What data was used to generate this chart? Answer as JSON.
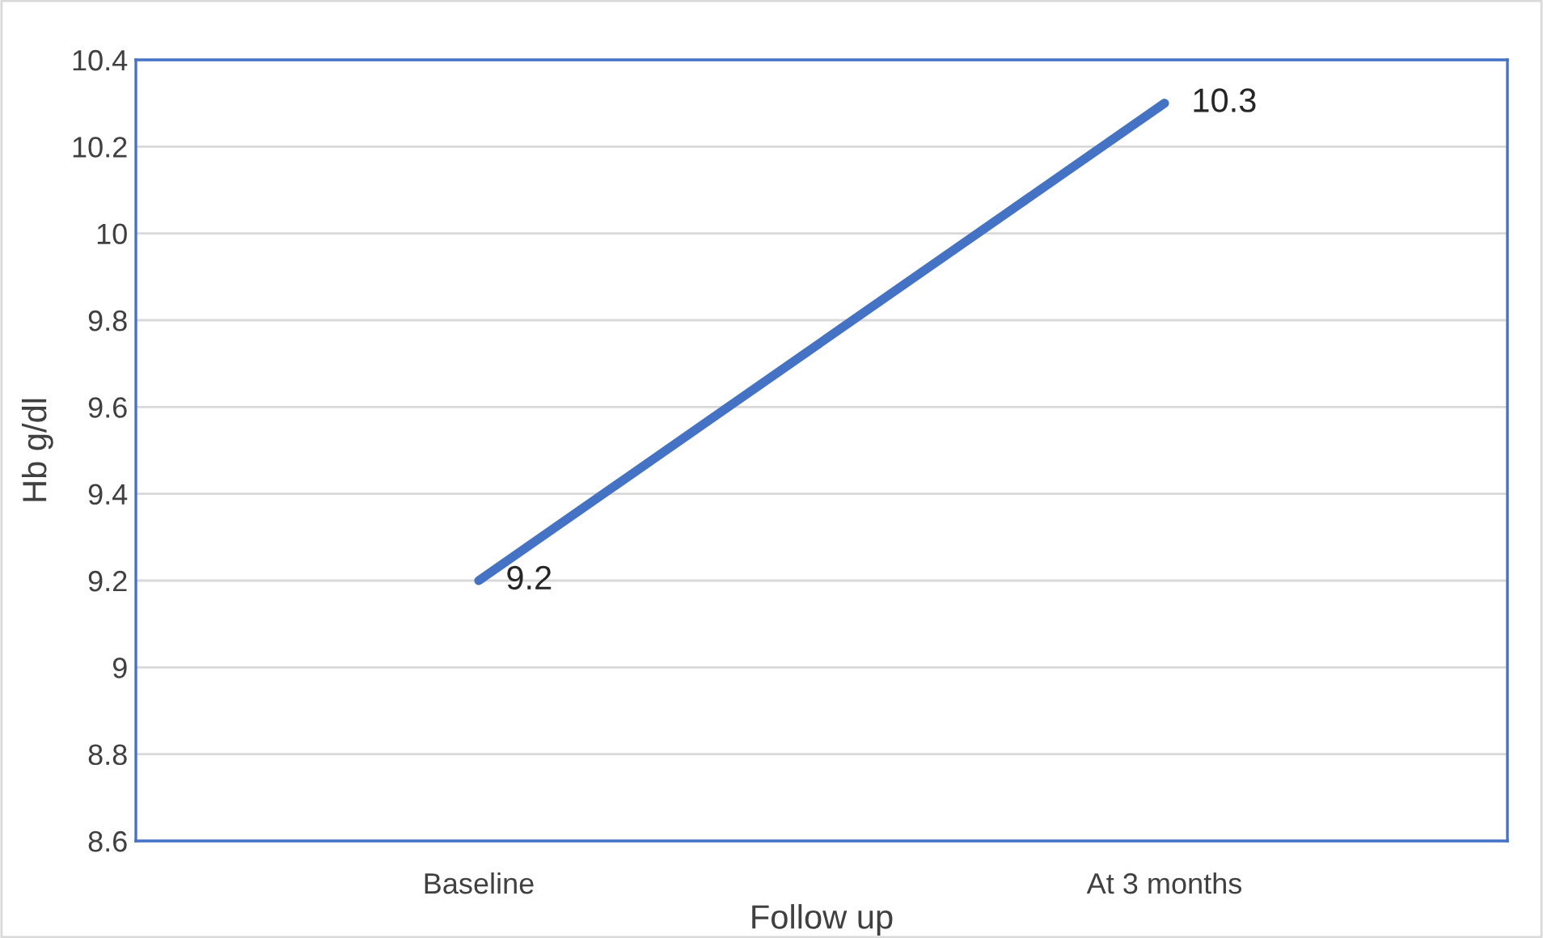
{
  "chart_data": {
    "type": "line",
    "xlabel": "Follow up",
    "ylabel": "Hb g/dl",
    "categories": [
      "Baseline",
      "At 3 months"
    ],
    "series": [
      {
        "color": "#4472c4",
        "values": [
          9.2,
          10.3
        ]
      }
    ],
    "ylim": [
      8.6,
      10.4
    ],
    "yticks": [
      8.6,
      8.8,
      9,
      9.2,
      9.4,
      9.6,
      9.8,
      10,
      10.2,
      10.4
    ],
    "grid": "y",
    "data_labels": true,
    "marker": "none",
    "line_style": "solid"
  }
}
